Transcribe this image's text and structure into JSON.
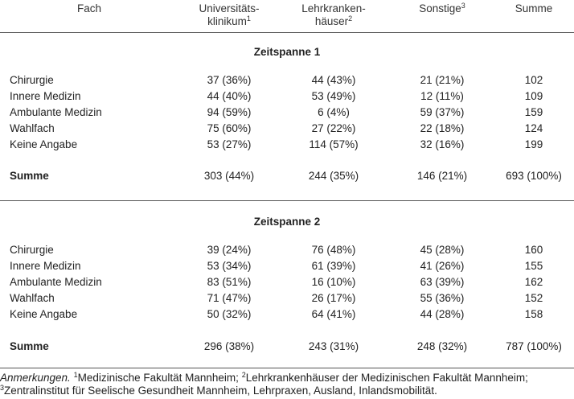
{
  "header": {
    "fach": "Fach",
    "col1_line1": "Universitäts-",
    "col1_line2": "klinikum",
    "col1_sup": "1",
    "col2_line1": "Lehrkranken-",
    "col2_line2": "häuser",
    "col2_sup": "2",
    "col3": "Sonstige",
    "col3_sup": "3",
    "col4": "Summe"
  },
  "sections": [
    {
      "title": "Zeitspanne 1",
      "rows": [
        {
          "fach": "Chirurgie",
          "uni": "37 (36%)",
          "lehr": "44 (43%)",
          "sonst": "21 (21%)",
          "summe": "102"
        },
        {
          "fach": "Innere Medizin",
          "uni": "44 (40%)",
          "lehr": "53 (49%)",
          "sonst": "12 (11%)",
          "summe": "109"
        },
        {
          "fach": "Ambulante Medizin",
          "uni": "94 (59%)",
          "lehr": "6 (4%)",
          "sonst": "59 (37%)",
          "summe": "159"
        },
        {
          "fach": "Wahlfach",
          "uni": "75 (60%)",
          "lehr": "27 (22%)",
          "sonst": "22 (18%)",
          "summe": "124"
        },
        {
          "fach": "Keine Angabe",
          "uni": "53 (27%)",
          "lehr": "114 (57%)",
          "sonst": "32 (16%)",
          "summe": "199"
        }
      ],
      "total": {
        "fach": "Summe",
        "uni": "303 (44%)",
        "lehr": "244 (35%)",
        "sonst": "146 (21%)",
        "summe": "693 (100%)"
      }
    },
    {
      "title": "Zeitspanne 2",
      "rows": [
        {
          "fach": "Chirurgie",
          "uni": "39 (24%)",
          "lehr": "76 (48%)",
          "sonst": "45 (28%)",
          "summe": "160"
        },
        {
          "fach": "Innere Medizin",
          "uni": "53 (34%)",
          "lehr": "61 (39%)",
          "sonst": "41 (26%)",
          "summe": "155"
        },
        {
          "fach": "Ambulante Medizin",
          "uni": "83 (51%)",
          "lehr": "16 (10%)",
          "sonst": "63 (39%)",
          "summe": "162"
        },
        {
          "fach": "Wahlfach",
          "uni": "71 (47%)",
          "lehr": "26 (17%)",
          "sonst": "55 (36%)",
          "summe": "152"
        },
        {
          "fach": "Keine Angabe",
          "uni": "50 (32%)",
          "lehr": "64 (41%)",
          "sonst": "44 (28%)",
          "summe": "158"
        }
      ],
      "total": {
        "fach": "Summe",
        "uni": "296 (38%)",
        "lehr": "243 (31%)",
        "sonst": "248 (32%)",
        "summe": "787 (100%)"
      }
    }
  ],
  "notes": {
    "lead": "Anmerkungen.",
    "n1_sup": "1",
    "n1": "Medizinische Fakultät Mannheim;",
    "n2_sup": "2",
    "n2": "Lehrkrankenhäuser der Medizinischen Fakultät Mannheim;",
    "n3_sup": "3",
    "n3": "Zentralinstitut für Seelische Gesundheit Mannheim, Lehrpraxen, Ausland, Inlandsmobilität."
  }
}
